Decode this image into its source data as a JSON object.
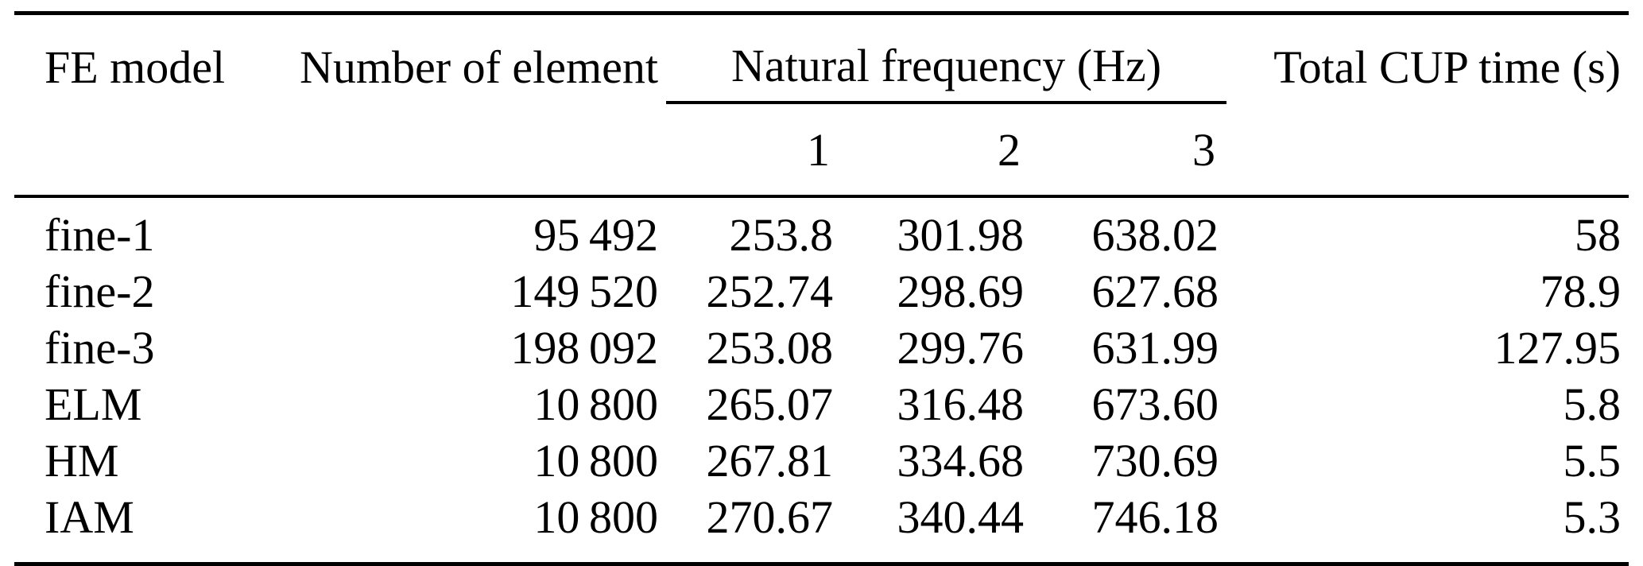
{
  "document": {
    "background_color": "#ffffff",
    "text_color": "#000000",
    "rule_color": "#000000"
  },
  "table": {
    "header": {
      "fe_model": "FE model",
      "number_of_element": "Number of element",
      "natural_frequency_group": "Natural frequency (Hz)",
      "frequency_mode_columns": [
        "1",
        "2",
        "3"
      ],
      "total_cpu_time": "Total CUP time (s)"
    },
    "rows": [
      {
        "model": "fine-1",
        "elements": "95 492",
        "freq_1": "253.8",
        "freq_2": "301.98",
        "freq_3": "638.02",
        "cpu_time": "58"
      },
      {
        "model": "fine-2",
        "elements": "149 520",
        "freq_1": "252.74",
        "freq_2": "298.69",
        "freq_3": "627.68",
        "cpu_time": "78.9"
      },
      {
        "model": "fine-3",
        "elements": "198 092",
        "freq_1": "253.08",
        "freq_2": "299.76",
        "freq_3": "631.99",
        "cpu_time": "127.95"
      },
      {
        "model": "ELM",
        "elements": "10 800",
        "freq_1": "265.07",
        "freq_2": "316.48",
        "freq_3": "673.60",
        "cpu_time": "5.8"
      },
      {
        "model": "HM",
        "elements": "10 800",
        "freq_1": "267.81",
        "freq_2": "334.68",
        "freq_3": "730.69",
        "cpu_time": "5.5"
      },
      {
        "model": "IAM",
        "elements": "10 800",
        "freq_1": "270.67",
        "freq_2": "340.44",
        "freq_3": "746.18",
        "cpu_time": "5.3"
      }
    ]
  },
  "chart_data": {
    "type": "table",
    "title": "",
    "columns": [
      "FE model",
      "Number of element",
      "Natural frequency (Hz) 1",
      "Natural frequency (Hz) 2",
      "Natural frequency (Hz) 3",
      "Total CUP time (s)"
    ],
    "rows": [
      [
        "fine-1",
        95492,
        253.8,
        301.98,
        638.02,
        58
      ],
      [
        "fine-2",
        149520,
        252.74,
        298.69,
        627.68,
        78.9
      ],
      [
        "fine-3",
        198092,
        253.08,
        299.76,
        631.99,
        127.95
      ],
      [
        "ELM",
        10800,
        265.07,
        316.48,
        673.6,
        5.8
      ],
      [
        "HM",
        10800,
        267.81,
        334.68,
        730.69,
        5.5
      ],
      [
        "IAM",
        10800,
        270.67,
        340.44,
        746.18,
        5.3
      ]
    ]
  }
}
